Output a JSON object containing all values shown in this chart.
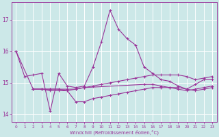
{
  "x": [
    0,
    1,
    2,
    3,
    4,
    5,
    6,
    7,
    8,
    9,
    10,
    11,
    12,
    13,
    14,
    15,
    16,
    17,
    18,
    19,
    20,
    21,
    22,
    23
  ],
  "line1_x": [
    0,
    1,
    2,
    3,
    4,
    5,
    6,
    7,
    8,
    9,
    10,
    11,
    12,
    13,
    14,
    15,
    16,
    17,
    18,
    19,
    20,
    21,
    22,
    23
  ],
  "line1_y": [
    16.0,
    15.2,
    15.25,
    15.3,
    14.1,
    15.3,
    14.9,
    14.85,
    14.9,
    15.5,
    16.3,
    17.3,
    16.7,
    16.4,
    16.2,
    15.5,
    15.3,
    15.1,
    15.05,
    14.9,
    14.8,
    14.95,
    15.1,
    15.1
  ],
  "line2_x": [
    0,
    2,
    3,
    4,
    5,
    6,
    7,
    8,
    9,
    10,
    11,
    12,
    13,
    14,
    15,
    16,
    17,
    18,
    19,
    20,
    21,
    22,
    23
  ],
  "line2_y": [
    16.0,
    14.8,
    14.8,
    14.8,
    14.8,
    14.8,
    14.8,
    14.85,
    14.9,
    14.95,
    15.0,
    15.05,
    15.1,
    15.15,
    15.2,
    15.25,
    15.25,
    15.25,
    15.25,
    15.2,
    15.1,
    15.15,
    15.2
  ],
  "line3_x": [
    2,
    3,
    4,
    5,
    6,
    7,
    8,
    9,
    10,
    11,
    12,
    13,
    14,
    15,
    16,
    17,
    18,
    19,
    20,
    21,
    22,
    23
  ],
  "line3_y": [
    14.8,
    14.8,
    14.8,
    14.8,
    14.75,
    14.4,
    14.4,
    14.5,
    14.55,
    14.6,
    14.65,
    14.7,
    14.75,
    14.8,
    14.85,
    14.85,
    14.85,
    14.85,
    14.8,
    14.75,
    14.8,
    14.85
  ],
  "line4_x": [
    2,
    3,
    4,
    5,
    6,
    7,
    8,
    15,
    16,
    17,
    18,
    19,
    20,
    21,
    22,
    23
  ],
  "line4_y": [
    14.8,
    14.8,
    14.75,
    14.75,
    14.75,
    14.8,
    14.85,
    14.95,
    14.95,
    14.9,
    14.85,
    14.8,
    14.75,
    14.8,
    14.85,
    14.9
  ],
  "background": "#cce8e8",
  "grid_color": "#ffffff",
  "line_color": "#993399",
  "ylabel_ticks": [
    14,
    15,
    16,
    17
  ],
  "xlabel_ticks": [
    0,
    1,
    2,
    3,
    4,
    5,
    6,
    7,
    8,
    9,
    10,
    11,
    12,
    13,
    14,
    15,
    16,
    17,
    18,
    19,
    20,
    21,
    22,
    23
  ],
  "xlabel": "Windchill (Refroidissement éolien,°C)",
  "ylim": [
    13.75,
    17.55
  ],
  "xlim": [
    -0.5,
    23.5
  ]
}
